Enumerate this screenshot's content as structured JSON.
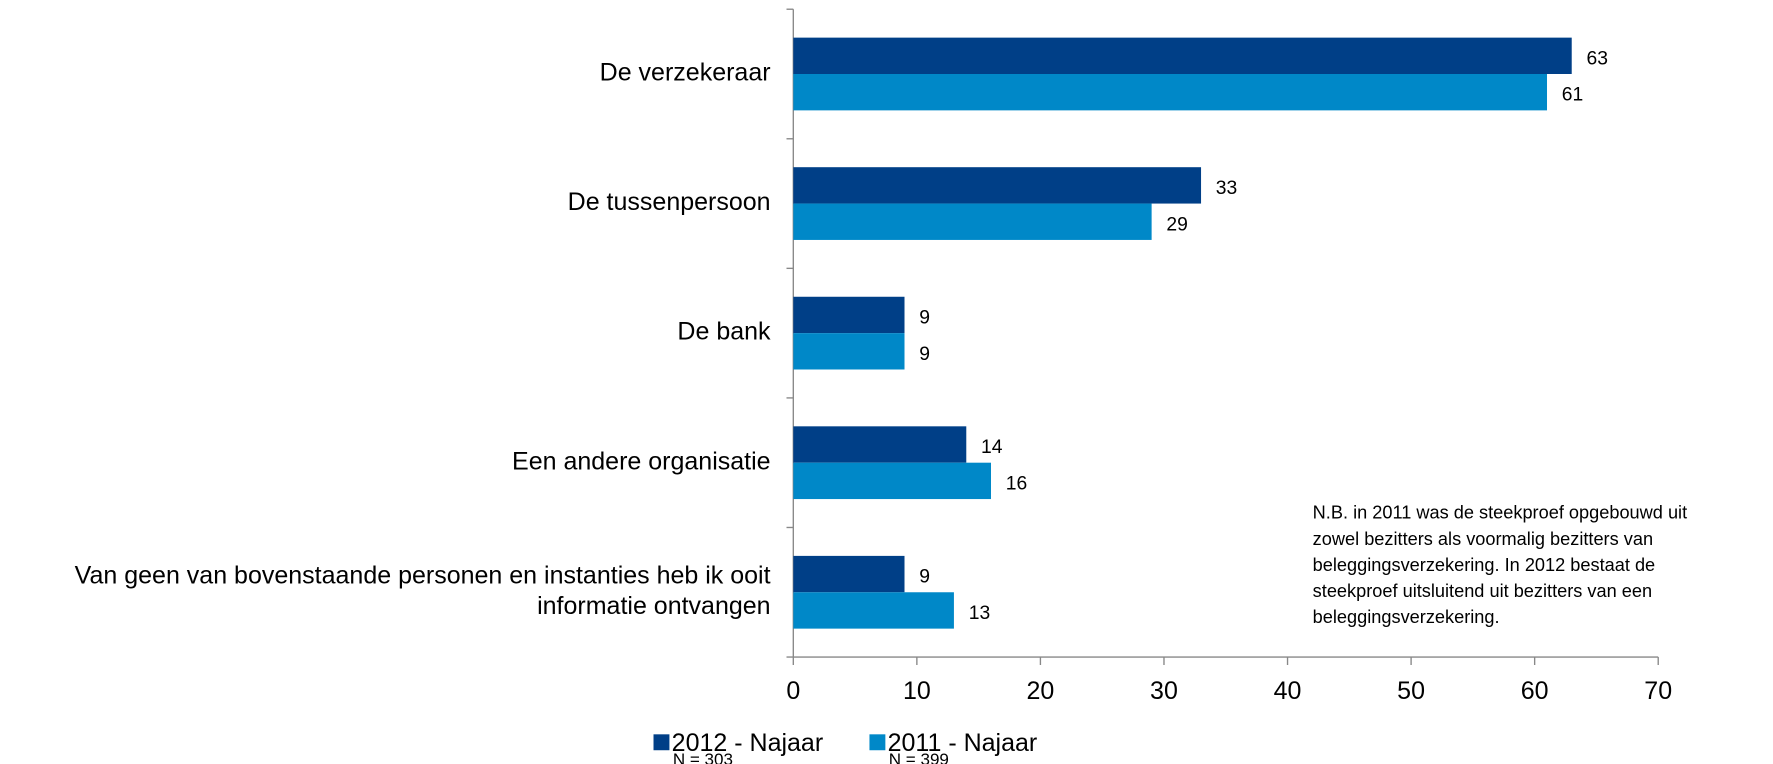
{
  "chart_data": {
    "type": "bar",
    "orientation": "horizontal",
    "categories": [
      [
        "De verzekeraar"
      ],
      [
        "De tussenpersoon"
      ],
      [
        "De bank"
      ],
      [
        "Een andere organisatie"
      ],
      [
        "Van geen van bovenstaande personen en instanties heb ik ooit",
        "informatie ontvangen"
      ]
    ],
    "series": [
      {
        "name": "2012 - Najaar",
        "note": "N = 303",
        "color": "#003f87",
        "values": [
          63,
          33,
          9,
          14,
          9
        ]
      },
      {
        "name": "2011 - Najaar",
        "note": "N = 399",
        "color": "#0088c8",
        "values": [
          61,
          29,
          9,
          16,
          13
        ]
      }
    ],
    "xlim": [
      0,
      70
    ],
    "xticks": [
      0,
      10,
      20,
      30,
      40,
      50,
      60,
      70
    ],
    "legend": "bottom",
    "annotation": [
      "N.B. in 2011 was de steekproef opgebouwd uit",
      "zowel bezitters als voormalig bezitters van",
      "beleggingsverzekering. In 2012 bestaat de",
      "steekproef uitsluitend uit bezitters van een",
      "beleggingsverzekering."
    ]
  }
}
